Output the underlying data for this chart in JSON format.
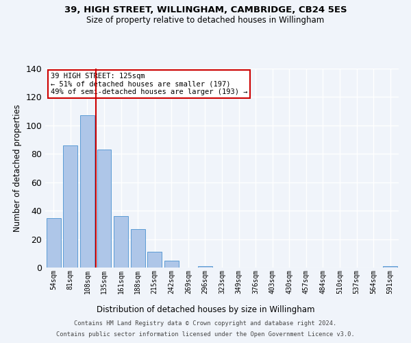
{
  "title": "39, HIGH STREET, WILLINGHAM, CAMBRIDGE, CB24 5ES",
  "subtitle": "Size of property relative to detached houses in Willingham",
  "xlabel": "Distribution of detached houses by size in Willingham",
  "ylabel": "Number of detached properties",
  "bar_labels": [
    "54sqm",
    "81sqm",
    "108sqm",
    "135sqm",
    "161sqm",
    "188sqm",
    "215sqm",
    "242sqm",
    "269sqm",
    "296sqm",
    "323sqm",
    "349sqm",
    "376sqm",
    "403sqm",
    "430sqm",
    "457sqm",
    "484sqm",
    "510sqm",
    "537sqm",
    "564sqm",
    "591sqm"
  ],
  "bar_values": [
    35,
    86,
    107,
    83,
    36,
    27,
    11,
    5,
    0,
    1,
    0,
    0,
    0,
    0,
    0,
    0,
    0,
    0,
    0,
    0,
    1
  ],
  "bar_color": "#aec6e8",
  "bar_edgecolor": "#5b9bd5",
  "background_color": "#f0f4fa",
  "grid_color": "#ffffff",
  "ylim": [
    0,
    140
  ],
  "yticks": [
    0,
    20,
    40,
    60,
    80,
    100,
    120,
    140
  ],
  "property_line_x": 2.5,
  "property_line_color": "#cc0000",
  "annotation_title": "39 HIGH STREET: 125sqm",
  "annotation_line1": "← 51% of detached houses are smaller (197)",
  "annotation_line2": "49% of semi-detached houses are larger (193) →",
  "annotation_box_color": "#ffffff",
  "annotation_box_edgecolor": "#cc0000",
  "footer_line1": "Contains HM Land Registry data © Crown copyright and database right 2024.",
  "footer_line2": "Contains public sector information licensed under the Open Government Licence v3.0."
}
